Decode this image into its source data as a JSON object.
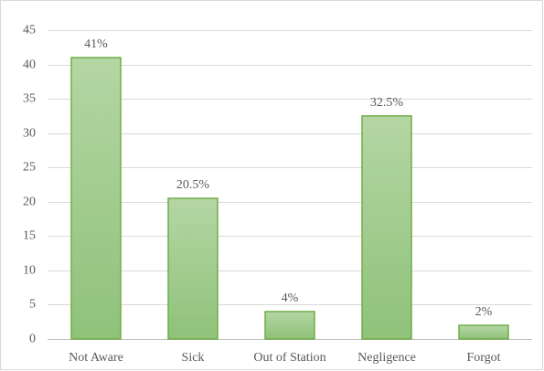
{
  "chart_data": {
    "type": "bar",
    "categories": [
      "Not Aware",
      "Sick",
      "Out of Station",
      "Negligence",
      "Forgot"
    ],
    "values": [
      41,
      20.5,
      4,
      32.5,
      2
    ],
    "data_labels": [
      "41%",
      "20.5%",
      "4%",
      "32.5%",
      "2%"
    ],
    "y_ticks": [
      "0",
      "5",
      "10",
      "15",
      "20",
      "25",
      "30",
      "35",
      "40",
      "45"
    ],
    "ylim": [
      0,
      45
    ],
    "grid": true,
    "legend": "none",
    "colors": {
      "bar_top": "#b4d6a4",
      "bar_bottom": "#8fc27a",
      "bar_edge": "#70ad47"
    }
  }
}
